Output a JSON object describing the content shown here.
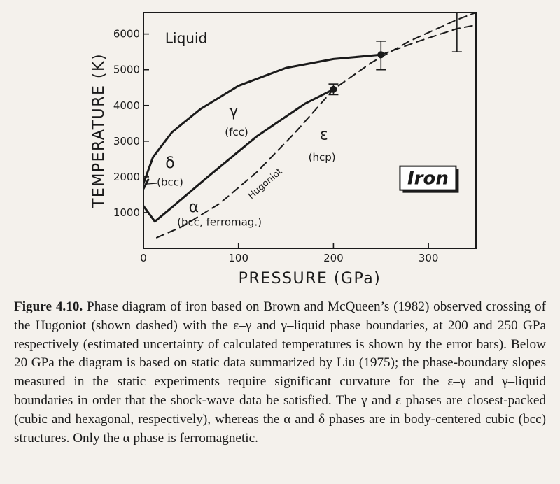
{
  "chart_data": {
    "type": "line",
    "title": "",
    "xlabel": "PRESSURE (GPa)",
    "ylabel": "TEMPERATURE (K)",
    "xlim": [
      0,
      350
    ],
    "ylim": [
      0,
      6600
    ],
    "xticks": [
      0,
      100,
      200,
      300
    ],
    "yticks": [
      1000,
      2000,
      3000,
      4000,
      5000,
      6000
    ],
    "series": [
      {
        "name": "",
        "style": "solid",
        "role": "melting (gamma-liquid)",
        "x": [
          0,
          10,
          30,
          60,
          100,
          150,
          200,
          250
        ],
        "y": [
          1811,
          2550,
          3250,
          3900,
          4550,
          5050,
          5300,
          5420
        ]
      },
      {
        "name": "",
        "style": "solid",
        "role": "epsilon-gamma",
        "x": [
          12,
          30,
          70,
          120,
          170,
          200
        ],
        "y": [
          750,
          1150,
          2050,
          3150,
          4050,
          4450
        ]
      },
      {
        "name": "",
        "style": "solid",
        "role": "alpha-gamma",
        "x": [
          0,
          12
        ],
        "y": [
          1185,
          750
        ]
      },
      {
        "name": "",
        "style": "solid",
        "role": "delta",
        "x": [
          0,
          5
        ],
        "y": [
          1667,
          1920
        ]
      },
      {
        "name": "Hugoniot",
        "style": "dashed",
        "x": [
          14,
          40,
          80,
          120,
          160,
          200,
          240,
          280,
          330,
          350
        ],
        "y": [
          300,
          600,
          1250,
          2150,
          3250,
          4450,
          5200,
          5800,
          6400,
          6600
        ]
      },
      {
        "name": "",
        "style": "dashed",
        "role": "melting extrapolation",
        "x": [
          250,
          290,
          330,
          350
        ],
        "y": [
          5420,
          5800,
          6150,
          6250
        ]
      }
    ],
    "error_bars": [
      {
        "x": 200,
        "y": 4450,
        "low": 4300,
        "high": 4600,
        "marker": true
      },
      {
        "x": 250,
        "y": 5420,
        "low": 5000,
        "high": 5800,
        "marker": true
      },
      {
        "x": 330,
        "y": 6000,
        "low": 5500,
        "high": 6600,
        "marker": false
      }
    ],
    "annotations": [
      {
        "text": "Liquid",
        "x": 45,
        "y": 5750
      },
      {
        "text": "γ",
        "x": 95,
        "y": 3700
      },
      {
        "text": "(fcc)",
        "x": 98,
        "y": 3150
      },
      {
        "text": "ε",
        "x": 190,
        "y": 3050
      },
      {
        "text": "(hcp)",
        "x": 188,
        "y": 2450
      },
      {
        "text": "δ",
        "x": 28,
        "y": 2250
      },
      {
        "text": "(bcc)",
        "x": 28,
        "y": 1750
      },
      {
        "text": "α",
        "x": 53,
        "y": 1020
      },
      {
        "text": "(bcc, ferromag.)",
        "x": 80,
        "y": 640
      },
      {
        "text": "Hugoniot",
        "x": 130,
        "y": 1750
      },
      {
        "text": "Iron",
        "x": 270,
        "y": 1750
      }
    ],
    "grid": false,
    "legend": "none"
  },
  "caption": {
    "label": "Figure 4.10.",
    "text": "Phase diagram of iron based on Brown and McQueen’s (1982) observed crossing of the Hugoniot (shown dashed) with the ε–γ and γ–liquid phase boundaries, at 200 and 250 GPa respectively (estimated uncertainty of calculated temperatures is shown by the error bars). Below 20 GPa the diagram is based on static data summarized by Liu (1975); the phase-boundary slopes measured in the static experiments require significant curvature for the ε–γ and γ–liquid boundaries in order that the shock-wave data be satisfied. The γ and ε phases are closest-packed (cubic and hexagonal, respectively), whereas the α and δ phases are in body-centered cubic (bcc) structures. Only the α phase is ferromagnetic."
  }
}
